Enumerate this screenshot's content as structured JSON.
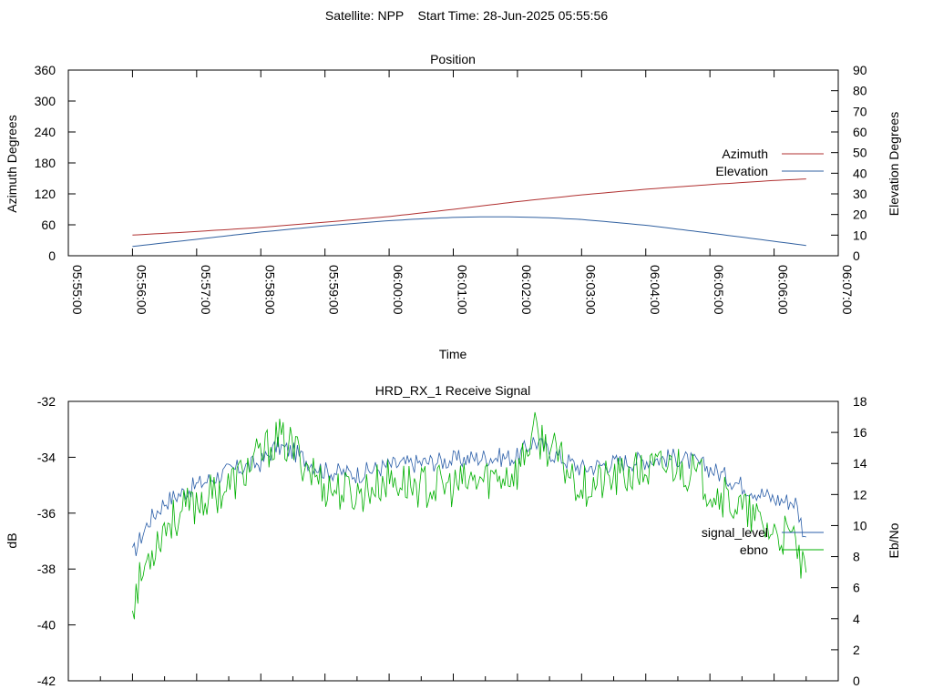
{
  "page": {
    "title": "Satellite: NPP    Start Time: 28-Jun-2025 05:55:56"
  },
  "colors": {
    "azimuth": "#b03030",
    "elevation": "#3060a0",
    "signal_level": "#2a5ea8",
    "ebno": "#00b000",
    "frame": "#000000"
  },
  "chart_data": [
    {
      "type": "line",
      "title": "Position",
      "xlabel": "Time",
      "ylabel": "Azimuth Degrees",
      "y2label": "Elevation Degrees",
      "xlim": [
        "05:55:00",
        "06:07:00"
      ],
      "ylim": [
        0,
        360
      ],
      "y2lim": [
        0,
        90
      ],
      "xticks": [
        "05:55:00",
        "05:56:00",
        "05:57:00",
        "05:58:00",
        "05:59:00",
        "06:00:00",
        "06:01:00",
        "06:02:00",
        "06:03:00",
        "06:04:00",
        "06:05:00",
        "06:06:00",
        "06:07:00"
      ],
      "yticks": [
        "0",
        "60",
        "120",
        "180",
        "240",
        "300",
        "360"
      ],
      "y2ticks": [
        "0",
        "10",
        "20",
        "30",
        "40",
        "50",
        "60",
        "70",
        "80",
        "90"
      ],
      "legend_position": "right",
      "grid": false,
      "series": [
        {
          "name": "Azimuth",
          "axis": "left",
          "color_key": "azimuth",
          "x": [
            "05:56:00",
            "05:57:00",
            "05:58:00",
            "05:59:00",
            "06:00:00",
            "06:01:00",
            "06:02:00",
            "06:03:00",
            "06:04:00",
            "06:05:00",
            "06:06:00",
            "06:06:30"
          ],
          "y": [
            40,
            47,
            55,
            65,
            76,
            90,
            105,
            118,
            129,
            138,
            146,
            149
          ]
        },
        {
          "name": "Elevation",
          "axis": "right",
          "color_key": "elevation",
          "x": [
            "05:56:00",
            "05:57:00",
            "05:58:00",
            "05:59:00",
            "06:00:00",
            "06:00:30",
            "06:01:00",
            "06:01:30",
            "06:02:00",
            "06:02:30",
            "06:03:00",
            "06:04:00",
            "06:05:00",
            "06:06:00",
            "06:06:30"
          ],
          "y": [
            4.5,
            8,
            11.5,
            14.5,
            17,
            17.9,
            18.6,
            18.9,
            18.8,
            18.4,
            17.6,
            14.8,
            11,
            7,
            5
          ]
        }
      ]
    },
    {
      "type": "line",
      "title": "HRD_RX_1 Receive Signal",
      "ylabel": "dB",
      "y2label": "Eb/No",
      "xlim": [
        "05:55:00",
        "06:07:00"
      ],
      "ylim": [
        -42,
        -32
      ],
      "y2lim": [
        0,
        18
      ],
      "yticks": [
        "-32",
        "-34",
        "-36",
        "-38",
        "-40",
        "-42"
      ],
      "y2ticks": [
        "0",
        "2",
        "4",
        "6",
        "8",
        "10",
        "12",
        "14",
        "16",
        "18"
      ],
      "legend_position": "right",
      "grid": false,
      "series": [
        {
          "name": "signal_level",
          "axis": "left",
          "color_key": "signal_level",
          "x": [
            "05:56:00",
            "05:56:15",
            "05:56:30",
            "05:57:00",
            "05:57:30",
            "05:58:00",
            "05:58:15",
            "05:58:30",
            "05:59:00",
            "05:59:30",
            "06:00:00",
            "06:00:30",
            "06:01:00",
            "06:01:30",
            "06:02:00",
            "06:02:15",
            "06:02:30",
            "06:03:00",
            "06:03:30",
            "06:04:00",
            "06:04:30",
            "06:05:00",
            "06:05:30",
            "06:06:00",
            "06:06:20",
            "06:06:30"
          ],
          "y": [
            -37.5,
            -36.3,
            -35.6,
            -35.0,
            -34.5,
            -34.2,
            -33.6,
            -33.8,
            -34.5,
            -34.6,
            -34.3,
            -34.2,
            -34.1,
            -34.0,
            -34.0,
            -33.4,
            -33.8,
            -34.4,
            -34.2,
            -34.1,
            -34.0,
            -34.4,
            -35.0,
            -35.5,
            -35.6,
            -37.0
          ]
        },
        {
          "name": "ebno",
          "axis": "right",
          "color_key": "ebno",
          "x": [
            "05:56:00",
            "05:56:15",
            "05:56:30",
            "05:57:00",
            "05:57:30",
            "05:58:00",
            "05:58:15",
            "05:58:30",
            "05:59:00",
            "05:59:30",
            "06:00:00",
            "06:00:30",
            "06:01:00",
            "06:01:30",
            "06:02:00",
            "06:02:15",
            "06:02:30",
            "06:03:00",
            "06:03:30",
            "06:04:00",
            "06:04:30",
            "06:05:00",
            "06:05:30",
            "06:06:00",
            "06:06:20",
            "06:06:30"
          ],
          "y": [
            5.0,
            8.0,
            10.0,
            11.5,
            12.5,
            14.5,
            15.6,
            15.0,
            12.5,
            12.0,
            13.0,
            12.5,
            12.5,
            13.0,
            13.5,
            16.0,
            15.0,
            12.5,
            13.0,
            13.5,
            14.0,
            12.5,
            11.0,
            9.5,
            9.0,
            6.0
          ]
        }
      ]
    }
  ]
}
